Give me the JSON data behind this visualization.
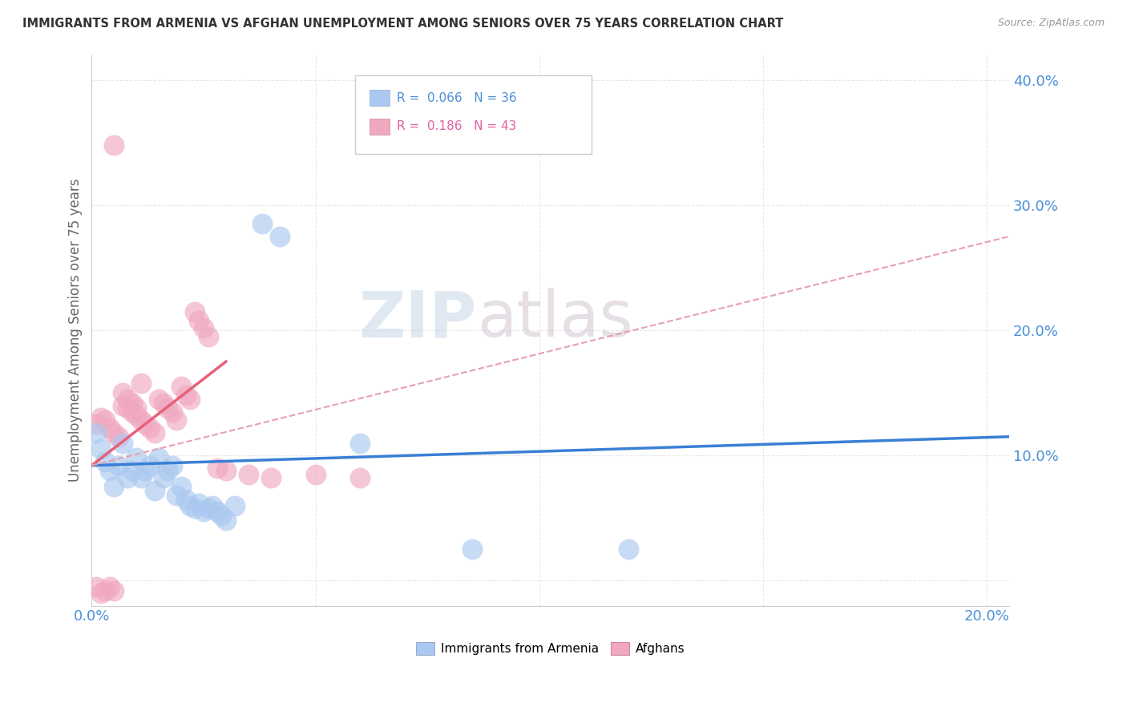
{
  "title": "IMMIGRANTS FROM ARMENIA VS AFGHAN UNEMPLOYMENT AMONG SENIORS OVER 75 YEARS CORRELATION CHART",
  "source": "Source: ZipAtlas.com",
  "ylabel": "Unemployment Among Seniors over 75 years",
  "xlim": [
    0.0,
    0.205
  ],
  "ylim": [
    -0.02,
    0.42
  ],
  "xticks": [
    0.0,
    0.05,
    0.1,
    0.15,
    0.2
  ],
  "yticks": [
    0.0,
    0.1,
    0.2,
    0.3,
    0.4
  ],
  "xtick_labels": [
    "0.0%",
    "",
    "",
    "",
    "20.0%"
  ],
  "ytick_labels": [
    "",
    "10.0%",
    "20.0%",
    "30.0%",
    "40.0%"
  ],
  "blue_label": "Immigrants from Armenia",
  "pink_label": "Afghans",
  "blue_R": "0.066",
  "blue_N": "36",
  "pink_R": "0.186",
  "pink_N": "43",
  "blue_color": "#aac8f0",
  "pink_color": "#f0a8c0",
  "blue_line_color": "#3a7fd5",
  "pink_line_color": "#e8607a",
  "pink_dash_color": "#e8a0b0",
  "watermark_zip": "ZIP",
  "watermark_atlas": "atlas",
  "blue_scatter": [
    [
      0.001,
      0.118
    ],
    [
      0.002,
      0.105
    ],
    [
      0.003,
      0.095
    ],
    [
      0.004,
      0.088
    ],
    [
      0.005,
      0.075
    ],
    [
      0.006,
      0.092
    ],
    [
      0.007,
      0.11
    ],
    [
      0.008,
      0.082
    ],
    [
      0.009,
      0.088
    ],
    [
      0.01,
      0.098
    ],
    [
      0.011,
      0.082
    ],
    [
      0.012,
      0.088
    ],
    [
      0.013,
      0.092
    ],
    [
      0.014,
      0.072
    ],
    [
      0.015,
      0.098
    ],
    [
      0.016,
      0.082
    ],
    [
      0.017,
      0.088
    ],
    [
      0.018,
      0.092
    ],
    [
      0.019,
      0.068
    ],
    [
      0.02,
      0.075
    ],
    [
      0.021,
      0.065
    ],
    [
      0.022,
      0.06
    ],
    [
      0.023,
      0.058
    ],
    [
      0.024,
      0.062
    ],
    [
      0.025,
      0.055
    ],
    [
      0.026,
      0.058
    ],
    [
      0.027,
      0.06
    ],
    [
      0.028,
      0.055
    ],
    [
      0.029,
      0.052
    ],
    [
      0.03,
      0.048
    ],
    [
      0.032,
      0.06
    ],
    [
      0.038,
      0.285
    ],
    [
      0.042,
      0.275
    ],
    [
      0.06,
      0.11
    ],
    [
      0.085,
      0.025
    ],
    [
      0.12,
      0.025
    ]
  ],
  "pink_scatter": [
    [
      0.001,
      0.125
    ],
    [
      0.002,
      0.13
    ],
    [
      0.003,
      0.128
    ],
    [
      0.004,
      0.122
    ],
    [
      0.005,
      0.118
    ],
    [
      0.006,
      0.115
    ],
    [
      0.007,
      0.14
    ],
    [
      0.007,
      0.15
    ],
    [
      0.008,
      0.138
    ],
    [
      0.008,
      0.145
    ],
    [
      0.009,
      0.135
    ],
    [
      0.009,
      0.142
    ],
    [
      0.01,
      0.132
    ],
    [
      0.01,
      0.138
    ],
    [
      0.011,
      0.128
    ],
    [
      0.011,
      0.158
    ],
    [
      0.012,
      0.125
    ],
    [
      0.013,
      0.122
    ],
    [
      0.014,
      0.118
    ],
    [
      0.015,
      0.145
    ],
    [
      0.016,
      0.142
    ],
    [
      0.017,
      0.138
    ],
    [
      0.018,
      0.135
    ],
    [
      0.019,
      0.128
    ],
    [
      0.02,
      0.155
    ],
    [
      0.021,
      0.148
    ],
    [
      0.022,
      0.145
    ],
    [
      0.023,
      0.215
    ],
    [
      0.024,
      0.208
    ],
    [
      0.025,
      0.202
    ],
    [
      0.026,
      0.195
    ],
    [
      0.005,
      0.348
    ],
    [
      0.028,
      0.09
    ],
    [
      0.03,
      0.088
    ],
    [
      0.035,
      0.085
    ],
    [
      0.04,
      0.082
    ],
    [
      0.05,
      0.085
    ],
    [
      0.06,
      0.082
    ],
    [
      0.001,
      -0.005
    ],
    [
      0.002,
      -0.01
    ],
    [
      0.003,
      -0.008
    ],
    [
      0.004,
      -0.005
    ],
    [
      0.005,
      -0.008
    ]
  ],
  "blue_line_solid": [
    [
      0.0,
      0.092
    ],
    [
      0.205,
      0.115
    ]
  ],
  "pink_line_solid": [
    [
      0.0,
      0.092
    ],
    [
      0.03,
      0.175
    ]
  ],
  "pink_line_dash": [
    [
      0.0,
      0.092
    ],
    [
      0.205,
      0.275
    ]
  ],
  "background_color": "#ffffff",
  "grid_color": "#e8e8e8"
}
